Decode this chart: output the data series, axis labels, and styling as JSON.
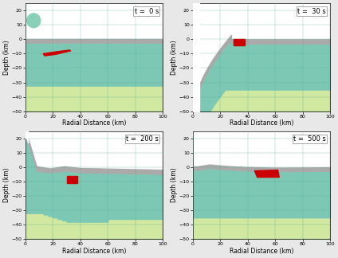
{
  "panels": [
    {
      "time": "t =  0 s",
      "idx": 0
    },
    {
      "time": "t =  30 s",
      "idx": 1
    },
    {
      "time": "t =  200 s",
      "idx": 2
    },
    {
      "time": "t =  500 s",
      "idx": 3
    }
  ],
  "xlim": [
    0,
    100
  ],
  "ylim": [
    -50,
    25
  ],
  "xlabel": "Radial Distance (km)",
  "ylabel": "Depth (km)",
  "color_gray": "#aaaaaa",
  "color_teal": "#7dc8b4",
  "color_light": "#d0e8a0",
  "color_white": "#ffffff",
  "color_grid": "#50a890",
  "color_red": "#cc0000",
  "color_circle": "#88d0b8",
  "bg_color": "#e8e8e8",
  "yticks": [
    -50,
    -40,
    -30,
    -20,
    -10,
    0,
    10,
    20
  ],
  "xticks": [
    0,
    20,
    40,
    60,
    80,
    100
  ]
}
